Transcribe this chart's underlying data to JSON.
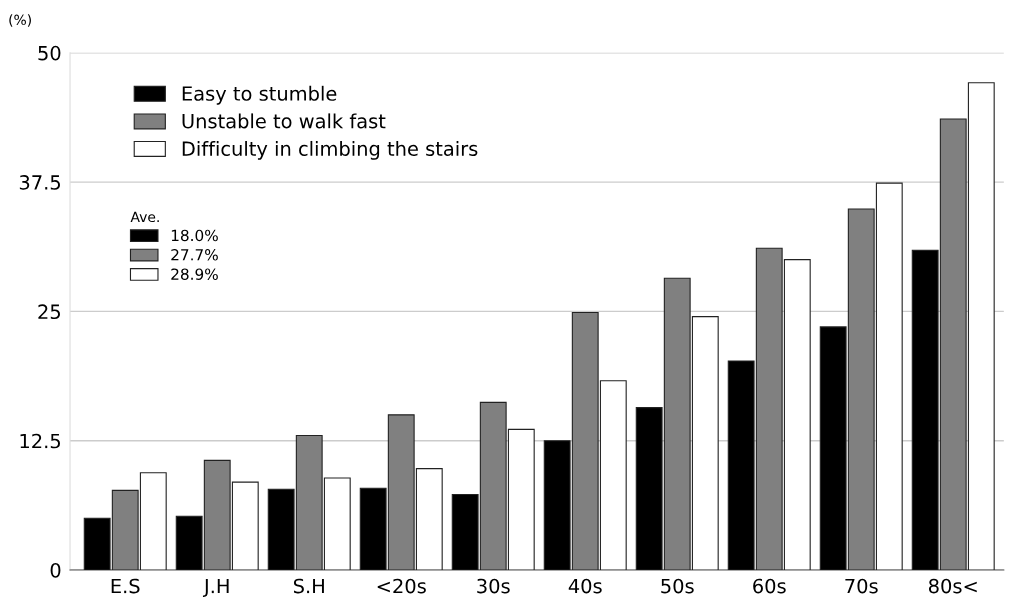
{
  "chart_data": {
    "type": "bar",
    "ylabel": "(%)",
    "categories": [
      "E.S",
      "J.H",
      "S.H",
      "<20s",
      "30s",
      "40s",
      "50s",
      "60s",
      "70s",
      "80s<"
    ],
    "series": [
      {
        "name": "Easy to stumble",
        "color": "#000000",
        "values": [
          5.0,
          5.2,
          7.8,
          7.9,
          7.3,
          12.5,
          15.7,
          20.2,
          23.5,
          30.9
        ]
      },
      {
        "name": "Unstable to walk fast",
        "color": "#808080",
        "values": [
          7.7,
          10.6,
          13.0,
          15.0,
          16.2,
          24.9,
          28.2,
          31.1,
          34.9,
          43.6
        ]
      },
      {
        "name": "Difficulty in climbing the stairs",
        "color": "#ffffff",
        "values": [
          9.4,
          8.5,
          8.9,
          9.8,
          13.6,
          18.3,
          24.5,
          30.0,
          37.4,
          47.1
        ]
      }
    ],
    "legend_title": "Ave.",
    "annotations": [
      "18.0%",
      "27.7%",
      "28.9%"
    ],
    "ylim": [
      0,
      50
    ],
    "yticks": [
      0,
      12.5,
      25,
      37.5,
      50
    ],
    "grid": "y",
    "legend": "top left"
  }
}
